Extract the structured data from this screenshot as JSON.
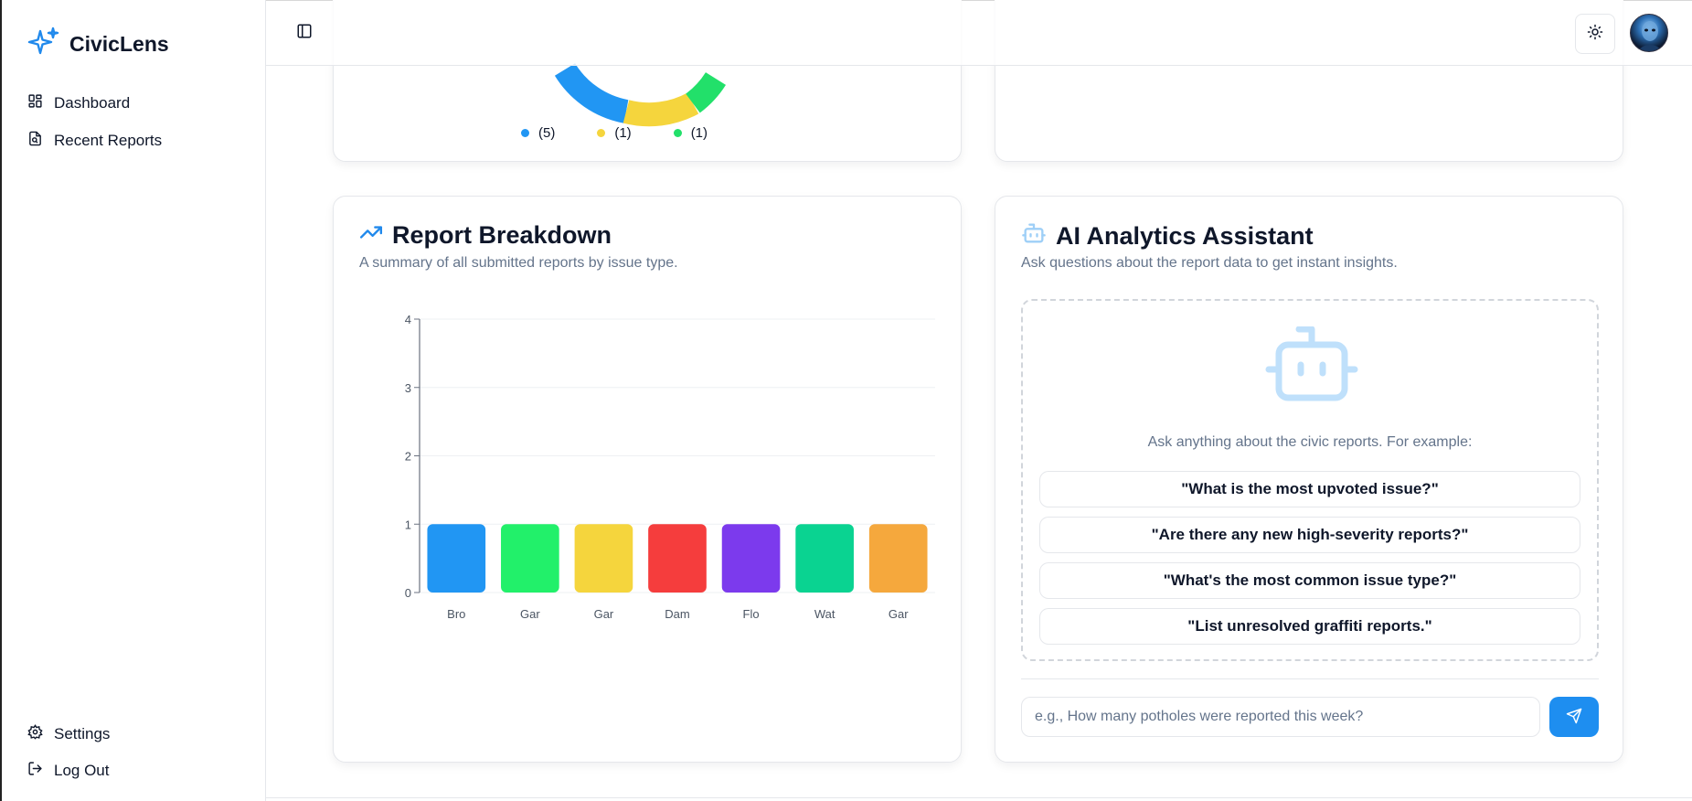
{
  "brand": {
    "name": "CivicLens",
    "icon": "sparkles-icon",
    "accent": "#2089ec"
  },
  "sidebar": {
    "items": [
      {
        "label": "Dashboard",
        "icon": "dashboard-icon"
      },
      {
        "label": "Recent Reports",
        "icon": "report-file-icon"
      }
    ],
    "bottom": [
      {
        "label": "Settings",
        "icon": "gear-icon"
      },
      {
        "label": "Log Out",
        "icon": "logout-icon"
      }
    ]
  },
  "topbar": {
    "toggle_icon": "sidebar-toggle-icon",
    "theme_icon": "sun-icon",
    "avatar": "user-avatar"
  },
  "status_card": {
    "legend": [
      {
        "count": "(5)",
        "color": "#2196f3"
      },
      {
        "count": "(1)",
        "color": "#f5d53d"
      },
      {
        "count": "(1)",
        "color": "#22e06a"
      }
    ]
  },
  "breakdown": {
    "title": "Report Breakdown",
    "subtitle": "A summary of all submitted reports by issue type.",
    "icon": "trending-up-icon"
  },
  "chart_data": {
    "type": "bar",
    "categories": [
      "Bro",
      "Gar",
      "Gar",
      "Dam",
      "Flo",
      "Wat",
      "Gar"
    ],
    "values": [
      1,
      1,
      1,
      1,
      1,
      1,
      1
    ],
    "colors": [
      "#2196f3",
      "#22f06a",
      "#f5d53d",
      "#f53d3d",
      "#7c3aed",
      "#0ad391",
      "#f5a83d"
    ],
    "yticks": [
      "0",
      "1",
      "2",
      "3",
      "4"
    ],
    "ylim": [
      0,
      4
    ],
    "grid": true
  },
  "ai": {
    "title": "AI Analytics Assistant",
    "subtitle": "Ask questions about the report data to get instant insights.",
    "icon": "bot-icon",
    "hint": "Ask anything about the civic reports. For example:",
    "suggestions": [
      "\"What is the most upvoted issue?\"",
      "\"Are there any new high-severity reports?\"",
      "\"What's the most common issue type?\"",
      "\"List unresolved graffiti reports.\""
    ],
    "input_placeholder": "e.g., How many potholes were reported this week?",
    "send_icon": "send-icon",
    "send_color": "#1e8ef0"
  }
}
